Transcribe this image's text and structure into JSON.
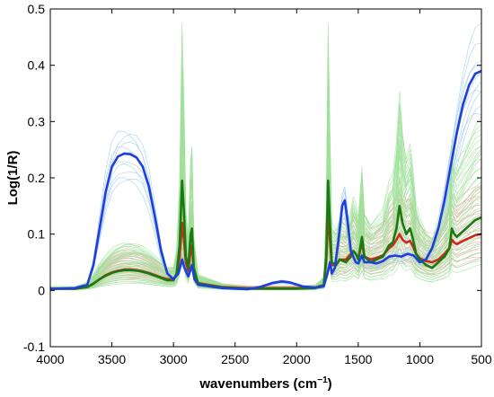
{
  "chart_data": {
    "type": "line",
    "xlabel_main": "wavenumbers (cm",
    "xlabel_sup": "−1",
    "xlabel_end": ")",
    "ylabel": "Log(1/R)",
    "xlim": [
      4000,
      500
    ],
    "x_reversed": true,
    "ylim": [
      -0.1,
      0.5
    ],
    "xticks": [
      4000,
      3500,
      3000,
      2500,
      2000,
      1500,
      1000,
      500
    ],
    "yticks": [
      -0.1,
      0,
      0.1,
      0.2,
      0.3,
      0.4,
      0.5
    ],
    "ytick_labels": [
      "-0.1",
      "0",
      "0.1",
      "0.2",
      "0.3",
      "0.4",
      "0.5"
    ],
    "grid": false,
    "colors": {
      "blue_bold": "#1f3fdc",
      "green_bold": "#1a7a10",
      "red_bold": "#cc2a1a",
      "blue_thin": "#9cc8f0",
      "green_thin": "#9fe09a",
      "red_thin": "#f2a8a8"
    },
    "bands": [
      {
        "name": "blue",
        "count": 10,
        "scale_min": 0.8,
        "scale_max": 1.15
      },
      {
        "name": "red",
        "count": 25,
        "scale_min": 0.55,
        "scale_max": 1.9
      },
      {
        "name": "green",
        "count": 40,
        "scale_min": 0.35,
        "scale_max": 2.3
      }
    ],
    "series": [
      {
        "color": "blue",
        "points": [
          [
            4000,
            0.003
          ],
          [
            3800,
            0.004
          ],
          [
            3700,
            0.01
          ],
          [
            3650,
            0.045
          ],
          [
            3600,
            0.11
          ],
          [
            3550,
            0.175
          ],
          [
            3500,
            0.22
          ],
          [
            3450,
            0.238
          ],
          [
            3400,
            0.243
          ],
          [
            3350,
            0.242
          ],
          [
            3300,
            0.236
          ],
          [
            3250,
            0.22
          ],
          [
            3200,
            0.185
          ],
          [
            3150,
            0.13
          ],
          [
            3100,
            0.07
          ],
          [
            3050,
            0.03
          ],
          [
            3000,
            0.02
          ],
          [
            2960,
            0.03
          ],
          [
            2930,
            0.055
          ],
          [
            2910,
            0.04
          ],
          [
            2880,
            0.025
          ],
          [
            2850,
            0.045
          ],
          [
            2830,
            0.02
          ],
          [
            2800,
            0.01
          ],
          [
            2600,
            0.004
          ],
          [
            2400,
            0.002
          ],
          [
            2300,
            0.006
          ],
          [
            2200,
            0.013
          ],
          [
            2120,
            0.016
          ],
          [
            2050,
            0.014
          ],
          [
            1950,
            0.007
          ],
          [
            1850,
            0.005
          ],
          [
            1780,
            0.007
          ],
          [
            1750,
            0.03
          ],
          [
            1730,
            0.05
          ],
          [
            1715,
            0.03
          ],
          [
            1690,
            0.04
          ],
          [
            1660,
            0.09
          ],
          [
            1630,
            0.15
          ],
          [
            1610,
            0.16
          ],
          [
            1590,
            0.13
          ],
          [
            1560,
            0.07
          ],
          [
            1520,
            0.05
          ],
          [
            1500,
            0.048
          ],
          [
            1470,
            0.062
          ],
          [
            1450,
            0.05
          ],
          [
            1400,
            0.05
          ],
          [
            1350,
            0.048
          ],
          [
            1300,
            0.052
          ],
          [
            1250,
            0.06
          ],
          [
            1200,
            0.062
          ],
          [
            1150,
            0.06
          ],
          [
            1100,
            0.065
          ],
          [
            1050,
            0.062
          ],
          [
            1000,
            0.05
          ],
          [
            950,
            0.055
          ],
          [
            900,
            0.075
          ],
          [
            850,
            0.11
          ],
          [
            800,
            0.16
          ],
          [
            750,
            0.22
          ],
          [
            700,
            0.28
          ],
          [
            650,
            0.33
          ],
          [
            600,
            0.365
          ],
          [
            550,
            0.385
          ],
          [
            500,
            0.39
          ]
        ]
      },
      {
        "color": "green",
        "points": [
          [
            4000,
            0.003
          ],
          [
            3800,
            0.003
          ],
          [
            3700,
            0.006
          ],
          [
            3650,
            0.012
          ],
          [
            3600,
            0.02
          ],
          [
            3550,
            0.026
          ],
          [
            3500,
            0.031
          ],
          [
            3450,
            0.034
          ],
          [
            3400,
            0.036
          ],
          [
            3350,
            0.036
          ],
          [
            3300,
            0.035
          ],
          [
            3250,
            0.033
          ],
          [
            3200,
            0.03
          ],
          [
            3150,
            0.026
          ],
          [
            3100,
            0.022
          ],
          [
            3050,
            0.018
          ],
          [
            3000,
            0.018
          ],
          [
            2975,
            0.03
          ],
          [
            2950,
            0.08
          ],
          [
            2930,
            0.195
          ],
          [
            2915,
            0.14
          ],
          [
            2900,
            0.06
          ],
          [
            2880,
            0.04
          ],
          [
            2860,
            0.1
          ],
          [
            2850,
            0.11
          ],
          [
            2835,
            0.04
          ],
          [
            2800,
            0.012
          ],
          [
            2600,
            0.005
          ],
          [
            2400,
            0.003
          ],
          [
            2200,
            0.003
          ],
          [
            2000,
            0.003
          ],
          [
            1850,
            0.004
          ],
          [
            1780,
            0.01
          ],
          [
            1760,
            0.06
          ],
          [
            1745,
            0.195
          ],
          [
            1730,
            0.12
          ],
          [
            1715,
            0.05
          ],
          [
            1680,
            0.045
          ],
          [
            1650,
            0.055
          ],
          [
            1600,
            0.05
          ],
          [
            1560,
            0.06
          ],
          [
            1540,
            0.07
          ],
          [
            1520,
            0.065
          ],
          [
            1500,
            0.055
          ],
          [
            1470,
            0.095
          ],
          [
            1450,
            0.06
          ],
          [
            1400,
            0.05
          ],
          [
            1350,
            0.055
          ],
          [
            1300,
            0.06
          ],
          [
            1250,
            0.08
          ],
          [
            1220,
            0.085
          ],
          [
            1190,
            0.11
          ],
          [
            1165,
            0.15
          ],
          [
            1140,
            0.12
          ],
          [
            1110,
            0.1
          ],
          [
            1080,
            0.11
          ],
          [
            1060,
            0.095
          ],
          [
            1030,
            0.065
          ],
          [
            1000,
            0.055
          ],
          [
            950,
            0.045
          ],
          [
            900,
            0.04
          ],
          [
            850,
            0.05
          ],
          [
            800,
            0.06
          ],
          [
            760,
            0.075
          ],
          [
            740,
            0.11
          ],
          [
            720,
            0.1
          ],
          [
            700,
            0.095
          ],
          [
            650,
            0.105
          ],
          [
            600,
            0.115
          ],
          [
            550,
            0.125
          ],
          [
            500,
            0.13
          ]
        ]
      },
      {
        "color": "red",
        "points": [
          [
            4000,
            0.003
          ],
          [
            3800,
            0.003
          ],
          [
            3700,
            0.006
          ],
          [
            3650,
            0.012
          ],
          [
            3600,
            0.02
          ],
          [
            3550,
            0.027
          ],
          [
            3500,
            0.032
          ],
          [
            3450,
            0.035
          ],
          [
            3400,
            0.037
          ],
          [
            3350,
            0.037
          ],
          [
            3300,
            0.036
          ],
          [
            3250,
            0.034
          ],
          [
            3200,
            0.031
          ],
          [
            3150,
            0.027
          ],
          [
            3100,
            0.023
          ],
          [
            3050,
            0.02
          ],
          [
            3000,
            0.02
          ],
          [
            2975,
            0.028
          ],
          [
            2950,
            0.06
          ],
          [
            2930,
            0.12
          ],
          [
            2915,
            0.09
          ],
          [
            2900,
            0.05
          ],
          [
            2880,
            0.035
          ],
          [
            2860,
            0.07
          ],
          [
            2850,
            0.08
          ],
          [
            2835,
            0.035
          ],
          [
            2800,
            0.013
          ],
          [
            2600,
            0.006
          ],
          [
            2400,
            0.004
          ],
          [
            2200,
            0.004
          ],
          [
            2000,
            0.004
          ],
          [
            1850,
            0.005
          ],
          [
            1780,
            0.01
          ],
          [
            1760,
            0.05
          ],
          [
            1745,
            0.14
          ],
          [
            1730,
            0.09
          ],
          [
            1715,
            0.045
          ],
          [
            1680,
            0.045
          ],
          [
            1650,
            0.055
          ],
          [
            1600,
            0.055
          ],
          [
            1560,
            0.065
          ],
          [
            1540,
            0.07
          ],
          [
            1520,
            0.065
          ],
          [
            1500,
            0.057
          ],
          [
            1470,
            0.085
          ],
          [
            1450,
            0.06
          ],
          [
            1400,
            0.055
          ],
          [
            1350,
            0.058
          ],
          [
            1300,
            0.062
          ],
          [
            1250,
            0.075
          ],
          [
            1220,
            0.08
          ],
          [
            1190,
            0.09
          ],
          [
            1165,
            0.1
          ],
          [
            1140,
            0.09
          ],
          [
            1110,
            0.085
          ],
          [
            1080,
            0.088
          ],
          [
            1060,
            0.08
          ],
          [
            1030,
            0.065
          ],
          [
            1000,
            0.057
          ],
          [
            950,
            0.052
          ],
          [
            900,
            0.05
          ],
          [
            850,
            0.055
          ],
          [
            800,
            0.065
          ],
          [
            760,
            0.075
          ],
          [
            740,
            0.09
          ],
          [
            720,
            0.085
          ],
          [
            700,
            0.082
          ],
          [
            650,
            0.088
          ],
          [
            600,
            0.093
          ],
          [
            550,
            0.098
          ],
          [
            500,
            0.1
          ]
        ]
      }
    ]
  }
}
